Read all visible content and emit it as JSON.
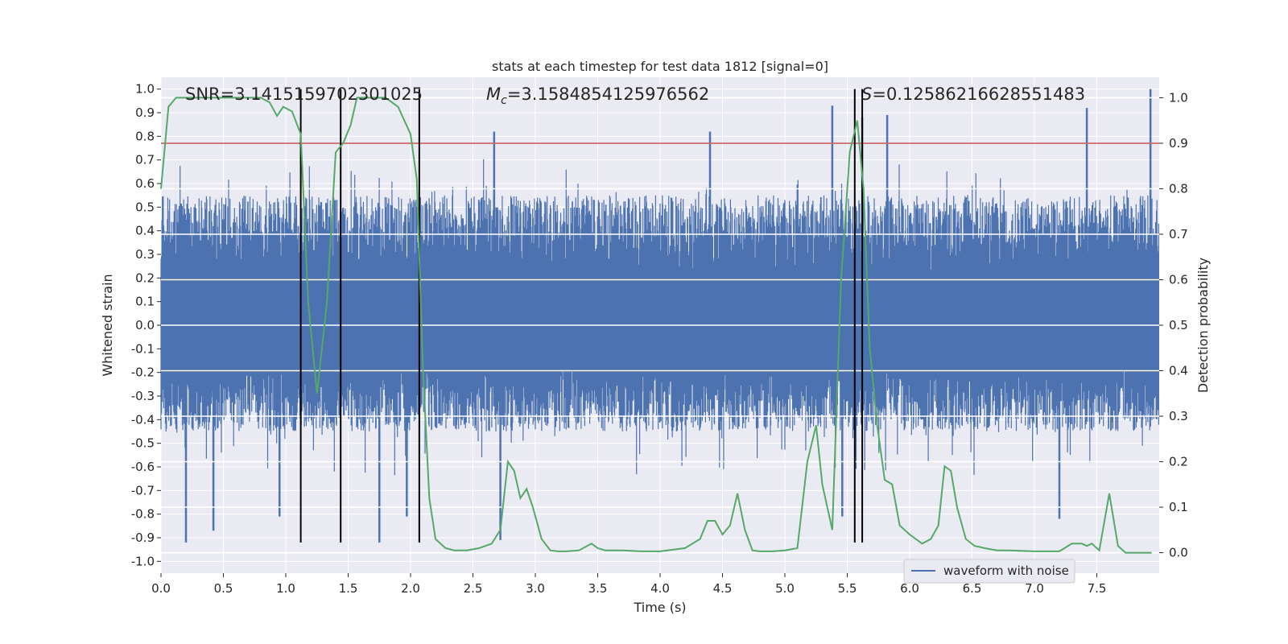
{
  "chart_data": {
    "type": "line",
    "title": "stats at each timestep for test data 1812 [signal=0]",
    "xlabel": "Time (s)",
    "ylabel": "Whitened strain",
    "y2label": "Detection probability",
    "xlim": [
      0,
      8
    ],
    "ylim": [
      -1.05,
      1.05
    ],
    "y2lim": [
      -0.045,
      1.045
    ],
    "x_ticks": [
      "0.0",
      "0.5",
      "1.0",
      "1.5",
      "2.0",
      "2.5",
      "3.0",
      "3.5",
      "4.0",
      "4.5",
      "5.0",
      "5.5",
      "6.0",
      "6.5",
      "7.0",
      "7.5"
    ],
    "y_ticks": [
      "1.0",
      "0.9",
      "0.8",
      "0.7",
      "0.6",
      "0.5",
      "0.4",
      "0.3",
      "0.2",
      "0.1",
      "0.0",
      "-0.1",
      "-0.2",
      "-0.3",
      "-0.4",
      "-0.5",
      "-0.6",
      "-0.7",
      "-0.8",
      "-0.9",
      "-1.0"
    ],
    "y2_ticks": [
      "1.0",
      "0.9",
      "0.8",
      "0.7",
      "0.6",
      "0.5",
      "0.4",
      "0.3",
      "0.2",
      "0.1",
      "0.0"
    ],
    "grid": true,
    "annotations": {
      "snr": "SNR=3.1415159702301025",
      "mc_symbol": "M",
      "mc_sub": "c",
      "mc_value": "=3.1584854125976562",
      "s_symbol": "S",
      "s_value": "=0.12586216628551483"
    },
    "legend": {
      "label": "waveform with noise",
      "position": "lower right"
    },
    "threshold": {
      "y2": 0.9,
      "color": "#c44e52"
    },
    "event_lines": {
      "x": [
        1.12,
        1.44,
        2.07,
        5.56,
        5.62
      ],
      "y_range": [
        -0.92,
        1.0
      ],
      "color": "#000000"
    },
    "series": [
      {
        "name": "waveform with noise",
        "axis": "left",
        "color": "#4c72b0",
        "kind": "noise-waveform",
        "typical_range": [
          -0.45,
          0.55
        ],
        "spikes": [
          {
            "x": 0.2,
            "y": -0.92
          },
          {
            "x": 0.42,
            "y": -0.87
          },
          {
            "x": 0.95,
            "y": -0.81
          },
          {
            "x": 1.75,
            "y": -0.92
          },
          {
            "x": 1.97,
            "y": -0.81
          },
          {
            "x": 2.67,
            "y": 0.82
          },
          {
            "x": 2.72,
            "y": -0.91
          },
          {
            "x": 4.4,
            "y": 0.82
          },
          {
            "x": 5.38,
            "y": 0.93
          },
          {
            "x": 5.46,
            "y": -0.81
          },
          {
            "x": 5.62,
            "y": 0.88
          },
          {
            "x": 5.82,
            "y": 0.89
          },
          {
            "x": 7.2,
            "y": -0.82
          },
          {
            "x": 7.42,
            "y": 0.92
          },
          {
            "x": 7.93,
            "y": 1.0
          }
        ]
      },
      {
        "name": "Detection probability",
        "axis": "right",
        "color": "#55a868",
        "x": [
          0,
          0.06,
          0.12,
          0.2,
          0.3,
          0.4,
          0.5,
          0.6,
          0.7,
          0.8,
          0.87,
          0.93,
          0.98,
          1.05,
          1.12,
          1.18,
          1.25,
          1.33,
          1.4,
          1.46,
          1.52,
          1.57,
          1.62,
          1.7,
          1.8,
          1.9,
          1.95,
          2.0,
          2.05,
          2.1,
          2.15,
          2.2,
          2.28,
          2.35,
          2.45,
          2.55,
          2.65,
          2.72,
          2.78,
          2.83,
          2.88,
          2.93,
          2.98,
          3.05,
          3.12,
          3.18,
          3.25,
          3.35,
          3.45,
          3.5,
          3.56,
          3.62,
          3.7,
          3.85,
          4.0,
          4.2,
          4.32,
          4.38,
          4.44,
          4.5,
          4.56,
          4.62,
          4.68,
          4.74,
          4.8,
          4.9,
          5.0,
          5.1,
          5.18,
          5.25,
          5.3,
          5.38,
          5.45,
          5.52,
          5.58,
          5.63,
          5.68,
          5.74,
          5.8,
          5.86,
          5.92,
          6.0,
          6.1,
          6.17,
          6.23,
          6.28,
          6.33,
          6.38,
          6.45,
          6.52,
          6.6,
          6.7,
          6.8,
          7.0,
          7.2,
          7.3,
          7.38,
          7.42,
          7.46,
          7.52,
          7.6,
          7.67,
          7.73,
          7.8,
          7.9,
          7.94
        ],
        "y": [
          0.8,
          0.98,
          1.0,
          1.0,
          1.0,
          1.0,
          1.0,
          1.0,
          1.0,
          1.0,
          0.99,
          0.96,
          0.98,
          0.97,
          0.92,
          0.55,
          0.35,
          0.55,
          0.88,
          0.9,
          0.94,
          1.0,
          1.0,
          1.0,
          1.0,
          0.98,
          0.95,
          0.92,
          0.82,
          0.4,
          0.12,
          0.03,
          0.01,
          0.005,
          0.005,
          0.01,
          0.02,
          0.05,
          0.2,
          0.18,
          0.12,
          0.14,
          0.1,
          0.03,
          0.005,
          0.003,
          0.003,
          0.005,
          0.02,
          0.01,
          0.005,
          0.005,
          0.005,
          0.003,
          0.003,
          0.01,
          0.03,
          0.07,
          0.07,
          0.04,
          0.06,
          0.13,
          0.05,
          0.005,
          0.003,
          0.003,
          0.005,
          0.01,
          0.2,
          0.28,
          0.15,
          0.05,
          0.6,
          0.88,
          0.95,
          0.8,
          0.45,
          0.28,
          0.16,
          0.15,
          0.06,
          0.04,
          0.02,
          0.03,
          0.06,
          0.19,
          0.18,
          0.1,
          0.03,
          0.015,
          0.01,
          0.005,
          0.005,
          0.003,
          0.003,
          0.02,
          0.02,
          0.015,
          0.02,
          0.005,
          0.13,
          0.015,
          0.0,
          0.0,
          0.0,
          0.0
        ]
      }
    ]
  }
}
